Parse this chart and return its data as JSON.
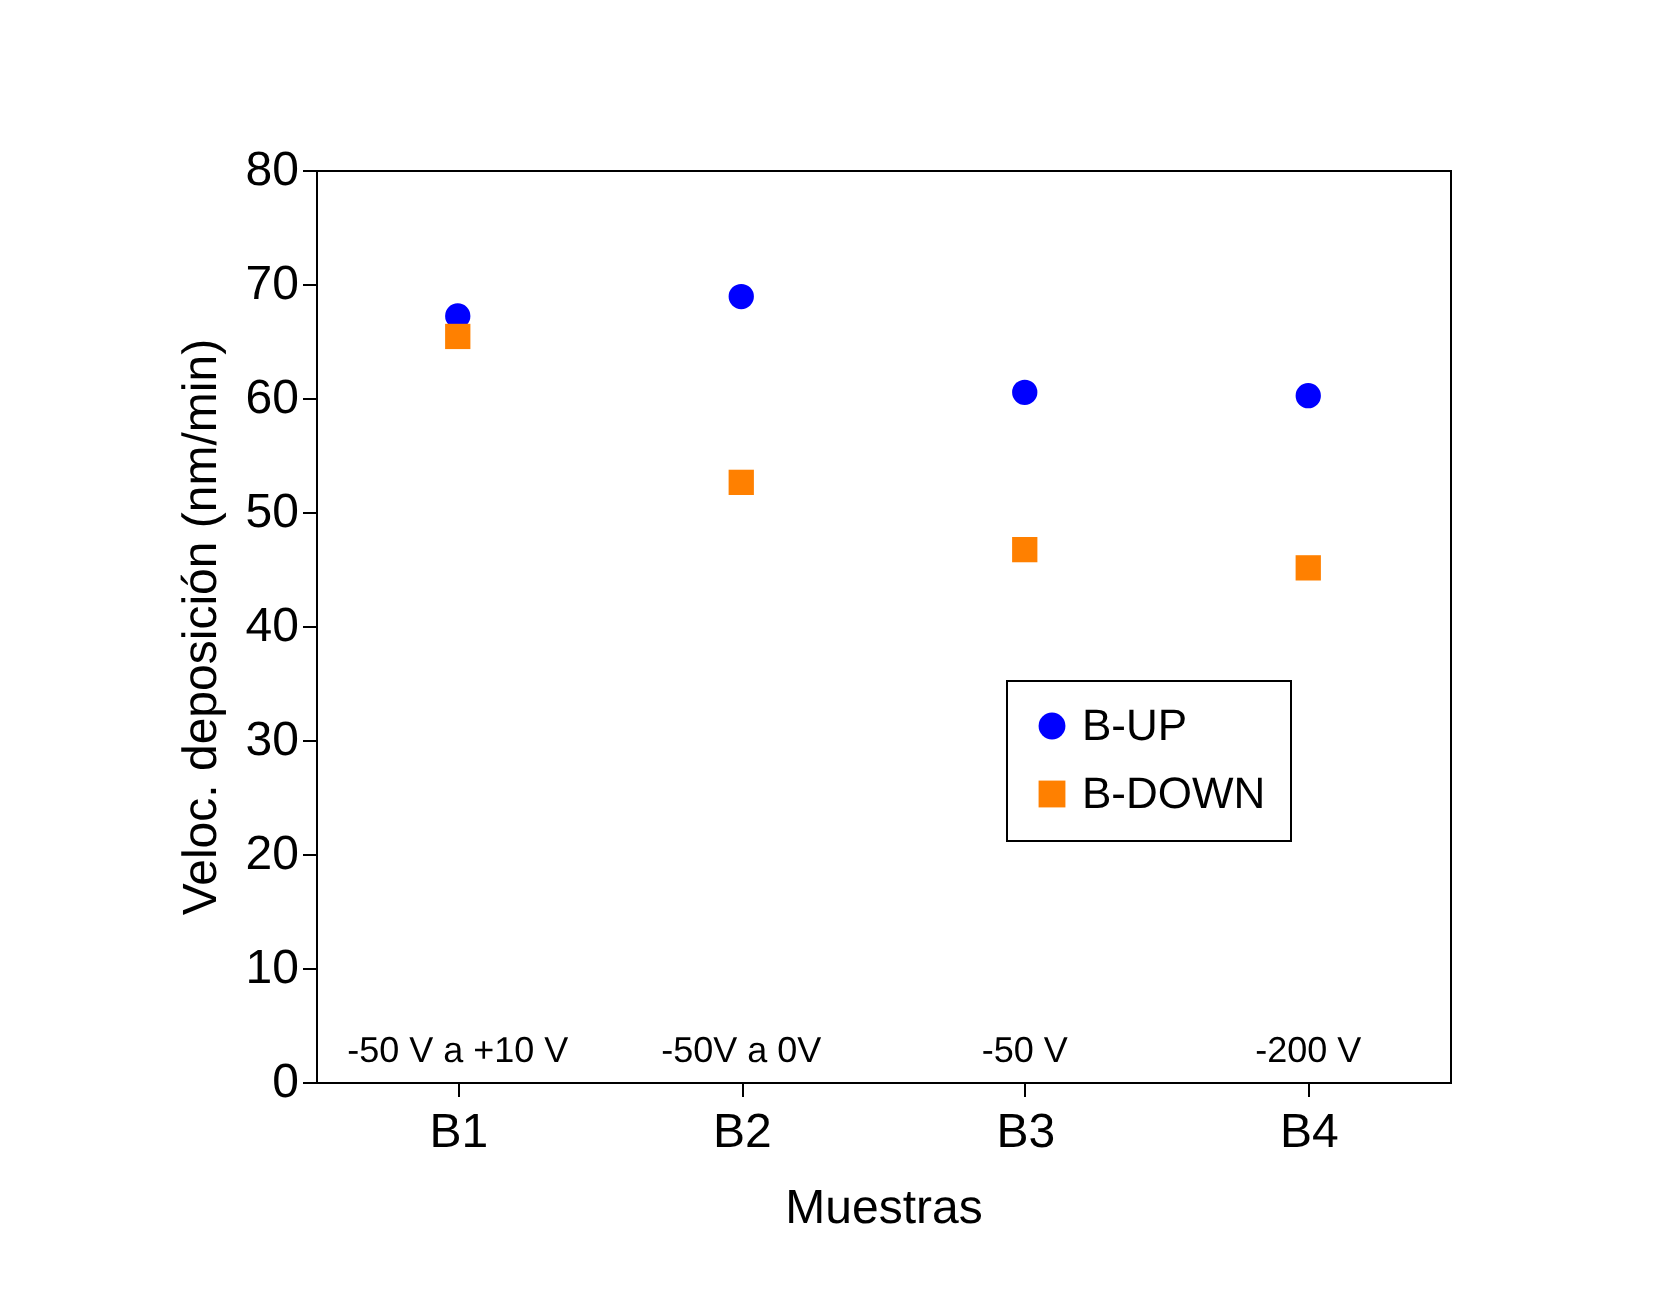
{
  "chart_data": {
    "type": "scatter",
    "xlabel": "Muestras",
    "ylabel": "Veloc. deposición (nm/min)",
    "categories": [
      "B1",
      "B2",
      "B3",
      "B4"
    ],
    "series": [
      {
        "name": "B-UP",
        "color": "#0000ff",
        "marker": "circle",
        "values": [
          67.2,
          68.9,
          60.5,
          60.2
        ]
      },
      {
        "name": "B-DOWN",
        "color": "#ff8000",
        "marker": "square",
        "values": [
          65.4,
          52.6,
          46.7,
          45.1
        ]
      }
    ],
    "ylim": [
      0,
      80
    ],
    "yticks": [
      0,
      10,
      20,
      30,
      40,
      50,
      60,
      70,
      80
    ],
    "annotations": [
      "-50 V a +10 V",
      "-50V a 0V",
      "-50 V",
      "-200 V"
    ],
    "legend": "right",
    "grid": false
  }
}
